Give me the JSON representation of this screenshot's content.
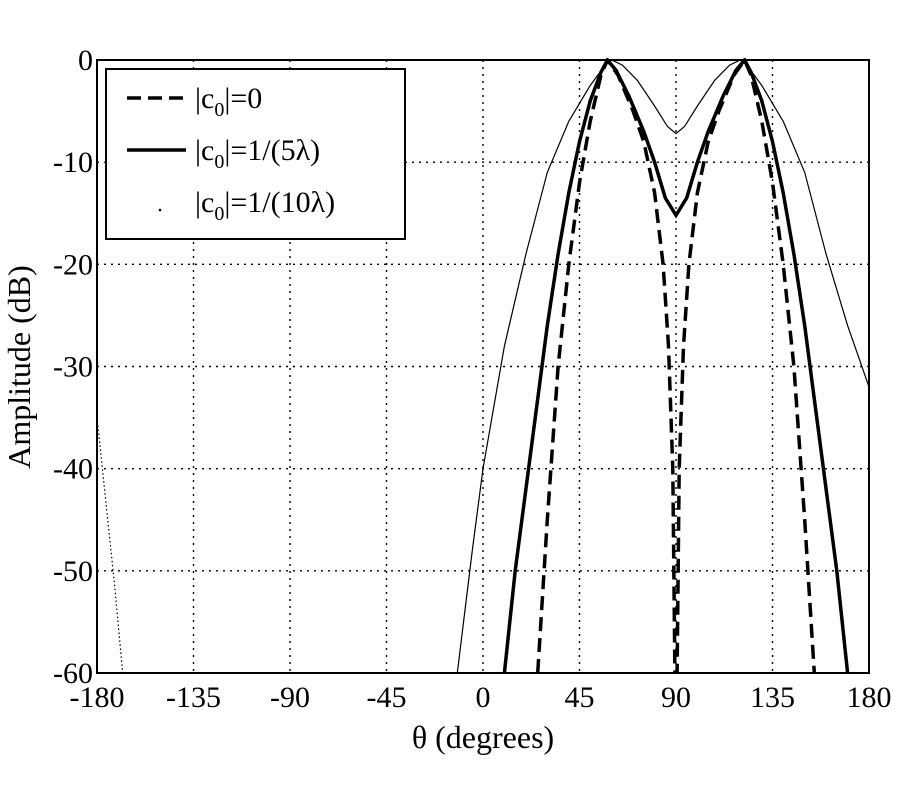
{
  "chart_data": {
    "type": "line",
    "xlabel": "θ (degrees)",
    "ylabel": "Amplitude (dB)",
    "xlim": [
      -180,
      180
    ],
    "ylim": [
      -60,
      0
    ],
    "xticks": [
      -180,
      -135,
      -90,
      -45,
      0,
      45,
      90,
      135,
      180
    ],
    "yticks": [
      0,
      -10,
      -20,
      -30,
      -40,
      -50,
      -60
    ],
    "xtick_labels": [
      "-180",
      "-135",
      "-90",
      "-45",
      "0",
      "45",
      "90",
      "135",
      "180"
    ],
    "ytick_labels": [
      "0",
      "-10",
      "-20",
      "-30",
      "-40",
      "-50",
      "-60"
    ],
    "grid": true,
    "legend_position": "top-left",
    "series": [
      {
        "name": "|c0|=0",
        "legend_main": "|c",
        "legend_sub": "0",
        "legend_rest": "|=0",
        "style": "dashed",
        "points": [
          [
            25.5,
            -60
          ],
          [
            30,
            -45
          ],
          [
            35,
            -30
          ],
          [
            40,
            -20
          ],
          [
            45,
            -12
          ],
          [
            50,
            -6
          ],
          [
            55,
            -1.5
          ],
          [
            58,
            0
          ],
          [
            63,
            -1.5
          ],
          [
            70,
            -5
          ],
          [
            75,
            -8
          ],
          [
            80,
            -13
          ],
          [
            84,
            -20
          ],
          [
            86.5,
            -28
          ],
          [
            88.5,
            -40
          ],
          [
            89.5,
            -60
          ],
          [
            90.5,
            -60
          ],
          [
            91.5,
            -40
          ],
          [
            93.5,
            -28
          ],
          [
            96,
            -20
          ],
          [
            100,
            -13
          ],
          [
            105,
            -8
          ],
          [
            110,
            -5
          ],
          [
            117,
            -1.5
          ],
          [
            122,
            0
          ],
          [
            125,
            -1.5
          ],
          [
            130,
            -6
          ],
          [
            135,
            -12
          ],
          [
            140,
            -20
          ],
          [
            145,
            -30
          ],
          [
            150,
            -45
          ],
          [
            154.5,
            -60
          ]
        ]
      },
      {
        "name": "|c0|=1/(5λ)",
        "legend_main": "|c",
        "legend_sub": "0",
        "legend_rest": "|=1/(5λ)",
        "style": "thick",
        "points": [
          [
            10,
            -60
          ],
          [
            15,
            -50
          ],
          [
            20,
            -42
          ],
          [
            25,
            -34
          ],
          [
            30,
            -26
          ],
          [
            35,
            -19
          ],
          [
            40,
            -13
          ],
          [
            45,
            -8
          ],
          [
            50,
            -4
          ],
          [
            55,
            -1.2
          ],
          [
            58,
            0
          ],
          [
            62,
            -1
          ],
          [
            68,
            -3.5
          ],
          [
            75,
            -7
          ],
          [
            80,
            -10
          ],
          [
            85,
            -13.5
          ],
          [
            90,
            -15.2
          ],
          [
            95,
            -13.5
          ],
          [
            100,
            -10
          ],
          [
            105,
            -7
          ],
          [
            112,
            -3.5
          ],
          [
            118,
            -1
          ],
          [
            122,
            0
          ],
          [
            125,
            -1.2
          ],
          [
            130,
            -4
          ],
          [
            135,
            -8
          ],
          [
            140,
            -13
          ],
          [
            145,
            -19
          ],
          [
            150,
            -26
          ],
          [
            155,
            -34
          ],
          [
            160,
            -42
          ],
          [
            165,
            -50
          ],
          [
            170,
            -60
          ]
        ]
      },
      {
        "name": "|c0|=1/(10λ)",
        "legend_main": "|c",
        "legend_sub": "0",
        "legend_rest": "|=1/(10λ)",
        "style": "thin",
        "points": [
          [
            -180,
            -35
          ],
          [
            -176,
            -43
          ],
          [
            -172,
            -51
          ],
          [
            -168,
            -60
          ]
        ],
        "points2": [
          [
            -12,
            -60
          ],
          [
            -5,
            -48
          ],
          [
            0,
            -40
          ],
          [
            10,
            -28
          ],
          [
            20,
            -19
          ],
          [
            30,
            -11
          ],
          [
            40,
            -6
          ],
          [
            50,
            -2.5
          ],
          [
            57,
            -0.5
          ],
          [
            60,
            0
          ],
          [
            65,
            -0.5
          ],
          [
            72,
            -2
          ],
          [
            80,
            -4.5
          ],
          [
            86,
            -6.5
          ],
          [
            90,
            -7.2
          ],
          [
            94,
            -6.5
          ],
          [
            100,
            -4.5
          ],
          [
            108,
            -2
          ],
          [
            115,
            -0.5
          ],
          [
            120,
            0
          ],
          [
            123,
            -0.5
          ],
          [
            130,
            -2.5
          ],
          [
            140,
            -6
          ],
          [
            150,
            -11
          ],
          [
            160,
            -19
          ],
          [
            170,
            -26
          ],
          [
            180,
            -32
          ]
        ]
      }
    ]
  }
}
